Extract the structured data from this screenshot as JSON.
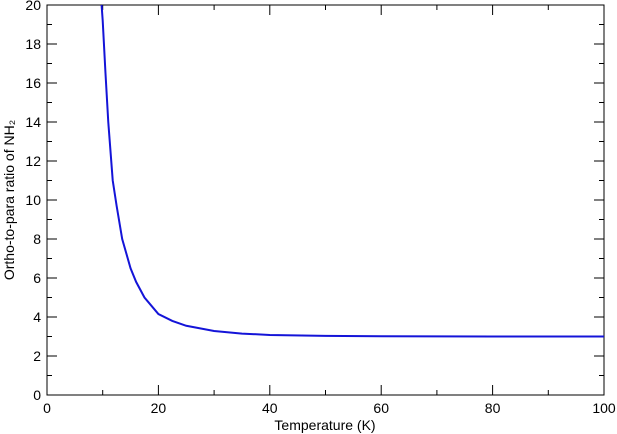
{
  "chart_data": {
    "type": "line",
    "x_label": "Temperature (K)",
    "y_label": "Ortho-to-para ratio of NH₂",
    "x": [
      9.8,
      10,
      10.5,
      11,
      11.8,
      12.5,
      13.5,
      15,
      16,
      17.5,
      20,
      22.5,
      25,
      30,
      35,
      40,
      50,
      60,
      80,
      100
    ],
    "series": [
      {
        "color": "#1414d8",
        "values": [
          20,
          19.2,
          16.5,
          14,
          11,
          9.7,
          8,
          6.5,
          5.8,
          5,
          4.15,
          3.8,
          3.55,
          3.28,
          3.15,
          3.08,
          3.03,
          3.01,
          3.0,
          3.0
        ]
      }
    ],
    "xlim": [
      0,
      100
    ],
    "xticks": [
      0,
      20,
      40,
      60,
      80,
      100
    ],
    "x_minor_ticks": [
      10,
      30,
      50,
      70,
      90
    ],
    "ylim": [
      0,
      20
    ],
    "yticks": [
      0,
      2,
      4,
      6,
      8,
      10,
      12,
      14,
      16,
      18,
      20
    ],
    "y_minor_ticks": [
      1,
      3,
      5,
      7,
      9,
      11,
      13,
      15,
      17,
      19
    ]
  }
}
